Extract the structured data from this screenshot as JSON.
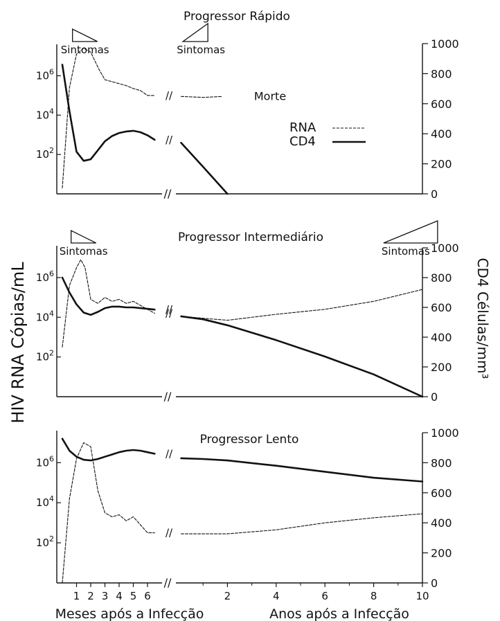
{
  "figure": {
    "y_left_label": "HIV RNA Cópias/mL",
    "y_right_label": "CD4 Células/mm³",
    "x_months_label": "Meses após a Infecção",
    "x_years_label": "Anos após a Infecção",
    "break_mark": "//"
  },
  "chart_data": [
    {
      "type": "line",
      "title": "Progressor Rápido",
      "y_left_scale": "log10",
      "y_left_ticks": [
        "10^2",
        "10^4",
        "10^6"
      ],
      "y_right_range": [
        0,
        1000
      ],
      "y_right_ticks": [
        0,
        200,
        400,
        600,
        800,
        1000
      ],
      "legend": {
        "placement": "center-right",
        "entries": [
          "RNA",
          "CD4"
        ]
      },
      "annotations": [
        {
          "text": "Sintomas",
          "x_months": 1.4
        },
        {
          "text": "Sintomas",
          "x_years": 0.8
        },
        {
          "text": "Morte",
          "x_years": 1.9
        }
      ],
      "series": [
        {
          "name": "RNA",
          "style": "dashed",
          "axis": "left",
          "months": [
            [
              0,
              0.3
            ],
            [
              0.5,
              5.4
            ],
            [
              1.0,
              7.1
            ],
            [
              1.5,
              7.4
            ],
            [
              2.0,
              7.2
            ],
            [
              2.6,
              6.3
            ],
            [
              3.0,
              5.8
            ],
            [
              3.5,
              5.7
            ],
            [
              4.0,
              5.6
            ],
            [
              4.5,
              5.5
            ],
            [
              5.0,
              5.35
            ],
            [
              5.5,
              5.25
            ],
            [
              6.0,
              5.0
            ],
            [
              6.5,
              5.0
            ]
          ],
          "years": [
            [
              0.1,
              4.95
            ],
            [
              1.0,
              4.9
            ],
            [
              1.8,
              4.95
            ]
          ]
        },
        {
          "name": "CD4",
          "style": "solid",
          "axis": "right",
          "months": [
            [
              0,
              860
            ],
            [
              0.5,
              550
            ],
            [
              1.0,
              280
            ],
            [
              1.5,
              220
            ],
            [
              2.0,
              230
            ],
            [
              2.5,
              290
            ],
            [
              3.0,
              350
            ],
            [
              3.5,
              385
            ],
            [
              4.0,
              405
            ],
            [
              4.5,
              415
            ],
            [
              5.0,
              420
            ],
            [
              5.5,
              410
            ],
            [
              6.0,
              390
            ],
            [
              6.5,
              360
            ]
          ],
          "years": [
            [
              0.1,
              340
            ],
            [
              1.0,
              180
            ],
            [
              2.0,
              0
            ]
          ]
        }
      ]
    },
    {
      "type": "line",
      "title": "Progressor Intermediário",
      "y_left_scale": "log10",
      "y_left_ticks": [
        "10^2",
        "10^4",
        "10^6"
      ],
      "y_right_range": [
        0,
        1000
      ],
      "y_right_ticks": [
        0,
        200,
        400,
        600,
        800,
        1000
      ],
      "annotations": [
        {
          "text": "Sintomas",
          "x_months": 1.3
        },
        {
          "text": "Sintomas",
          "x_years": 9.2
        }
      ],
      "series": [
        {
          "name": "RNA",
          "style": "dashed",
          "axis": "left",
          "months": [
            [
              0,
              2.5
            ],
            [
              0.5,
              5.6
            ],
            [
              1.0,
              6.5
            ],
            [
              1.3,
              6.9
            ],
            [
              1.6,
              6.5
            ],
            [
              2.0,
              4.9
            ],
            [
              2.5,
              4.7
            ],
            [
              3.0,
              5.0
            ],
            [
              3.5,
              4.8
            ],
            [
              4.0,
              4.9
            ],
            [
              4.5,
              4.7
            ],
            [
              5.0,
              4.8
            ],
            [
              5.5,
              4.6
            ],
            [
              6.0,
              4.4
            ],
            [
              6.5,
              4.2
            ]
          ],
          "years": [
            [
              0.1,
              4.05
            ],
            [
              1.0,
              3.95
            ],
            [
              2.0,
              3.85
            ],
            [
              4.0,
              4.15
            ],
            [
              6.0,
              4.4
            ],
            [
              8.0,
              4.8
            ],
            [
              10.0,
              5.4
            ]
          ]
        },
        {
          "name": "CD4",
          "style": "solid",
          "axis": "right",
          "months": [
            [
              0,
              800
            ],
            [
              0.5,
              700
            ],
            [
              1.0,
              620
            ],
            [
              1.5,
              565
            ],
            [
              2.0,
              550
            ],
            [
              2.5,
              570
            ],
            [
              3.0,
              595
            ],
            [
              3.5,
              605
            ],
            [
              4.0,
              605
            ],
            [
              4.5,
              600
            ],
            [
              5.0,
              600
            ],
            [
              5.5,
              595
            ],
            [
              6.0,
              590
            ],
            [
              6.5,
              585
            ]
          ],
          "years": [
            [
              0.1,
              540
            ],
            [
              1.0,
              520
            ],
            [
              2.0,
              480
            ],
            [
              4.0,
              380
            ],
            [
              6.0,
              270
            ],
            [
              8.0,
              150
            ],
            [
              10.0,
              0
            ]
          ]
        }
      ]
    },
    {
      "type": "line",
      "title": "Progressor Lento",
      "y_left_scale": "log10",
      "y_left_ticks": [
        "10^2",
        "10^4",
        "10^6"
      ],
      "y_right_range": [
        0,
        1000
      ],
      "y_right_ticks": [
        0,
        200,
        400,
        600,
        800,
        1000
      ],
      "x_months_ticks": [
        1,
        2,
        3,
        4,
        5,
        6
      ],
      "x_years_ticks": [
        2,
        4,
        6,
        8,
        10
      ],
      "series": [
        {
          "name": "RNA",
          "style": "dashed",
          "axis": "left",
          "months": [
            [
              0,
              0.0
            ],
            [
              0.5,
              4.2
            ],
            [
              1.0,
              6.2
            ],
            [
              1.5,
              7.0
            ],
            [
              2.0,
              6.8
            ],
            [
              2.5,
              4.6
            ],
            [
              3.0,
              3.5
            ],
            [
              3.5,
              3.3
            ],
            [
              4.0,
              3.4
            ],
            [
              4.5,
              3.1
            ],
            [
              5.0,
              3.3
            ],
            [
              5.5,
              2.9
            ],
            [
              6.0,
              2.5
            ],
            [
              6.5,
              2.5
            ]
          ],
          "years": [
            [
              0.1,
              2.45
            ],
            [
              2.0,
              2.45
            ],
            [
              4.0,
              2.65
            ],
            [
              6.0,
              3.0
            ],
            [
              8.0,
              3.25
            ],
            [
              10.0,
              3.45
            ]
          ]
        },
        {
          "name": "CD4",
          "style": "solid",
          "axis": "right",
          "months": [
            [
              0,
              960
            ],
            [
              0.5,
              880
            ],
            [
              1.0,
              840
            ],
            [
              1.5,
              820
            ],
            [
              2.0,
              815
            ],
            [
              2.5,
              825
            ],
            [
              3.0,
              840
            ],
            [
              3.5,
              855
            ],
            [
              4.0,
              870
            ],
            [
              4.5,
              880
            ],
            [
              5.0,
              885
            ],
            [
              5.5,
              880
            ],
            [
              6.0,
              870
            ],
            [
              6.5,
              860
            ]
          ],
          "years": [
            [
              0.1,
              830
            ],
            [
              1.0,
              825
            ],
            [
              2.0,
              815
            ],
            [
              4.0,
              780
            ],
            [
              6.0,
              740
            ],
            [
              8.0,
              700
            ],
            [
              10.0,
              675
            ]
          ]
        }
      ]
    }
  ]
}
